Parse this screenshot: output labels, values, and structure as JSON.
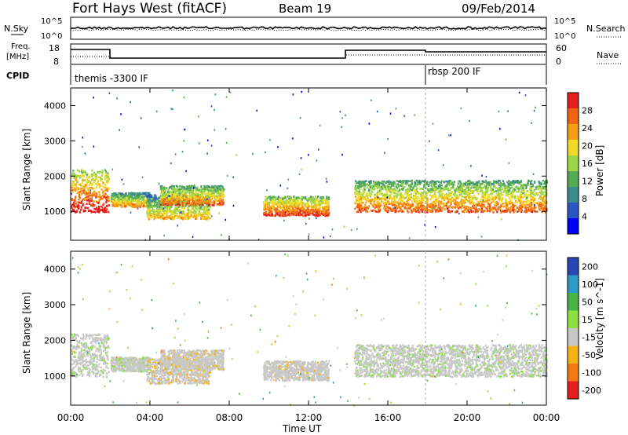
{
  "header": {
    "station": "Fort Hays West (fitACF)",
    "beam": "Beam 19",
    "date": "09/Feb/2014"
  },
  "noise_panel": {
    "left_label": "N.Sky",
    "left_ticks": [
      "10^5",
      "10^0"
    ],
    "right_label": "N.Search",
    "right_ticks": [
      "10^5",
      "10^0"
    ]
  },
  "freq_panel": {
    "left_label_1": "Freq.",
    "left_label_2": "[MHz]",
    "left_ticks": [
      "18",
      "8"
    ],
    "right_label": "Nave",
    "right_ticks": [
      "60",
      "0"
    ]
  },
  "cpid_panel": {
    "label": "CPID",
    "programs": [
      {
        "name": "themis -3300 IF",
        "start_hour": 0
      },
      {
        "name": "rbsp 200 IF",
        "start_hour": 18
      }
    ]
  },
  "chart_data": [
    {
      "type": "heatmap",
      "title": "",
      "quantity": "Power",
      "ylabel": "Slant Range [km]",
      "xlabel": "Time UT",
      "xlim": [
        0,
        24
      ],
      "ylim": [
        180,
        4500
      ],
      "yticks": [
        "1000",
        "2000",
        "3000",
        "4000"
      ],
      "colorbar": {
        "label": "Power [dB]",
        "ticks": [
          "4",
          "8",
          "12",
          "16",
          "20",
          "24",
          "28"
        ],
        "range": [
          0,
          30
        ],
        "colors": [
          "#0000ff",
          "#2a55c4",
          "#3c8c8c",
          "#55aa55",
          "#9ed64a",
          "#f0dc28",
          "#f5a014",
          "#f06414",
          "#e61e1e"
        ]
      },
      "scatter_regions": [
        {
          "t0": 0.0,
          "t1": 1.9,
          "r0": 1000,
          "r1": 2200,
          "level": 22
        },
        {
          "t0": 2.0,
          "t1": 4.0,
          "r0": 1150,
          "r1": 1550,
          "level": 16
        },
        {
          "t0": 3.8,
          "t1": 7.0,
          "r0": 800,
          "r1": 1500,
          "level": 14
        },
        {
          "t0": 4.5,
          "t1": 7.7,
          "r0": 1200,
          "r1": 1750,
          "level": 18
        },
        {
          "t0": 9.7,
          "t1": 13.0,
          "r0": 900,
          "r1": 1450,
          "level": 20
        },
        {
          "t0": 14.3,
          "t1": 24.0,
          "r0": 1000,
          "r1": 1900,
          "level": 18
        }
      ]
    },
    {
      "type": "heatmap",
      "title": "",
      "quantity": "Velocity",
      "ylabel": "Slant Range [km]",
      "xlabel": "Time UT",
      "xlim": [
        0,
        24
      ],
      "ylim": [
        180,
        4500
      ],
      "yticks": [
        "1000",
        "2000",
        "3000",
        "4000"
      ],
      "colorbar": {
        "label": "Velocity [m s^-1]",
        "ticks": [
          "200",
          "100",
          "50",
          "15",
          "-15",
          "-50",
          "-100",
          "-200"
        ],
        "range": [
          -250,
          250
        ],
        "colors": [
          "#2846b4",
          "#2d9ac8",
          "#46b446",
          "#8ce141",
          "#c8c8c8",
          "#f5b414",
          "#f57814",
          "#e61e1e"
        ]
      },
      "scatter_regions": [
        {
          "t0": 0.0,
          "t1": 1.9,
          "r0": 1000,
          "r1": 2200,
          "level": 0
        },
        {
          "t0": 2.0,
          "t1": 4.0,
          "r0": 1150,
          "r1": 1550,
          "level": 0
        },
        {
          "t0": 3.8,
          "t1": 7.0,
          "r0": 800,
          "r1": 1500,
          "level": -60
        },
        {
          "t0": 4.5,
          "t1": 7.7,
          "r0": 1200,
          "r1": 1750,
          "level": -40
        },
        {
          "t0": 9.7,
          "t1": 13.0,
          "r0": 900,
          "r1": 1450,
          "level": -30
        },
        {
          "t0": 14.3,
          "t1": 24.0,
          "r0": 1000,
          "r1": 1900,
          "level": 0
        }
      ]
    }
  ],
  "time_axis": {
    "label": "Time UT",
    "ticks": [
      "00:00",
      "04:00",
      "08:00",
      "12:00",
      "16:00",
      "20:00",
      "00:00"
    ]
  }
}
